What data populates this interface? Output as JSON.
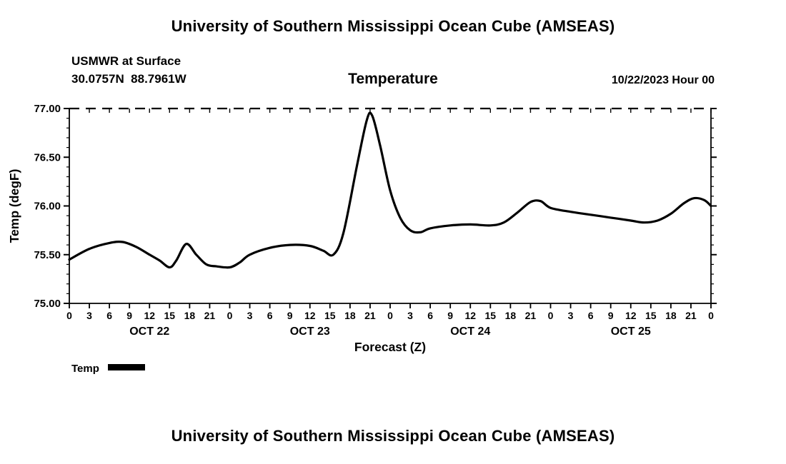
{
  "header": {
    "title": "University of Southern Mississippi Ocean Cube (AMSEAS)",
    "station": "USMWR at Surface",
    "coords": "30.0757N  88.7961W",
    "chart_title": "Temperature",
    "datetime": "10/22/2023 Hour 00"
  },
  "footer": {
    "title": "University of Southern Mississippi Ocean Cube (AMSEAS)"
  },
  "legend": {
    "label": "Temp",
    "color": "#000000"
  },
  "chart_data": {
    "type": "line",
    "title": "Temperature",
    "xlabel": "Forecast (Z)",
    "ylabel": "Temp (degF)",
    "xlim": [
      0,
      96
    ],
    "ylim": [
      75.0,
      77.0
    ],
    "x_tick_step": 3,
    "x_tick_labels": [
      "0",
      "3",
      "6",
      "9",
      "12",
      "15",
      "18",
      "21",
      "0",
      "3",
      "6",
      "9",
      "12",
      "15",
      "18",
      "21",
      "0",
      "3",
      "6",
      "9",
      "12",
      "15",
      "18",
      "21",
      "0",
      "3",
      "6",
      "9",
      "12",
      "15",
      "18",
      "21",
      "0"
    ],
    "y_ticks": [
      75.0,
      75.5,
      76.0,
      76.5,
      77.0
    ],
    "y_tick_labels": [
      "75.00",
      "75.50",
      "76.00",
      "76.50",
      "77.00"
    ],
    "y_minor_tick_step": 0.1,
    "day_labels": [
      {
        "label": "OCT 22",
        "center_hour": 12
      },
      {
        "label": "OCT 23",
        "center_hour": 36
      },
      {
        "label": "OCT 24",
        "center_hour": 60
      },
      {
        "label": "OCT 25",
        "center_hour": 84
      }
    ],
    "line_color": "#000000",
    "line_width": 3.2,
    "grid": false,
    "legend_position": "below-left",
    "series": [
      {
        "name": "Temp",
        "units": "degF",
        "x_units": "forecast hour (Z) from 10/22/2023 00Z",
        "points": [
          [
            0,
            75.45
          ],
          [
            3,
            75.56
          ],
          [
            6,
            75.62
          ],
          [
            8,
            75.63
          ],
          [
            10,
            75.58
          ],
          [
            12,
            75.5
          ],
          [
            13.5,
            75.44
          ],
          [
            15,
            75.37
          ],
          [
            16,
            75.44
          ],
          [
            17.5,
            75.61
          ],
          [
            19,
            75.5
          ],
          [
            20.5,
            75.4
          ],
          [
            22,
            75.38
          ],
          [
            24,
            75.37
          ],
          [
            25.5,
            75.42
          ],
          [
            27,
            75.5
          ],
          [
            30,
            75.57
          ],
          [
            33,
            75.6
          ],
          [
            36,
            75.59
          ],
          [
            38,
            75.54
          ],
          [
            39.5,
            75.5
          ],
          [
            41,
            75.72
          ],
          [
            43,
            76.4
          ],
          [
            44.5,
            76.88
          ],
          [
            45.3,
            76.93
          ],
          [
            46.5,
            76.62
          ],
          [
            48,
            76.16
          ],
          [
            49.5,
            75.88
          ],
          [
            51,
            75.75
          ],
          [
            52.5,
            75.73
          ],
          [
            54,
            75.77
          ],
          [
            57,
            75.8
          ],
          [
            60,
            75.81
          ],
          [
            63,
            75.8
          ],
          [
            65,
            75.83
          ],
          [
            67,
            75.93
          ],
          [
            69,
            76.04
          ],
          [
            70.5,
            76.05
          ],
          [
            72,
            75.98
          ],
          [
            75,
            75.94
          ],
          [
            78,
            75.91
          ],
          [
            81,
            75.88
          ],
          [
            84,
            75.85
          ],
          [
            86,
            75.83
          ],
          [
            88,
            75.85
          ],
          [
            90,
            75.92
          ],
          [
            92,
            76.03
          ],
          [
            93.5,
            76.08
          ],
          [
            95,
            76.06
          ],
          [
            96,
            76.0
          ]
        ]
      }
    ]
  }
}
